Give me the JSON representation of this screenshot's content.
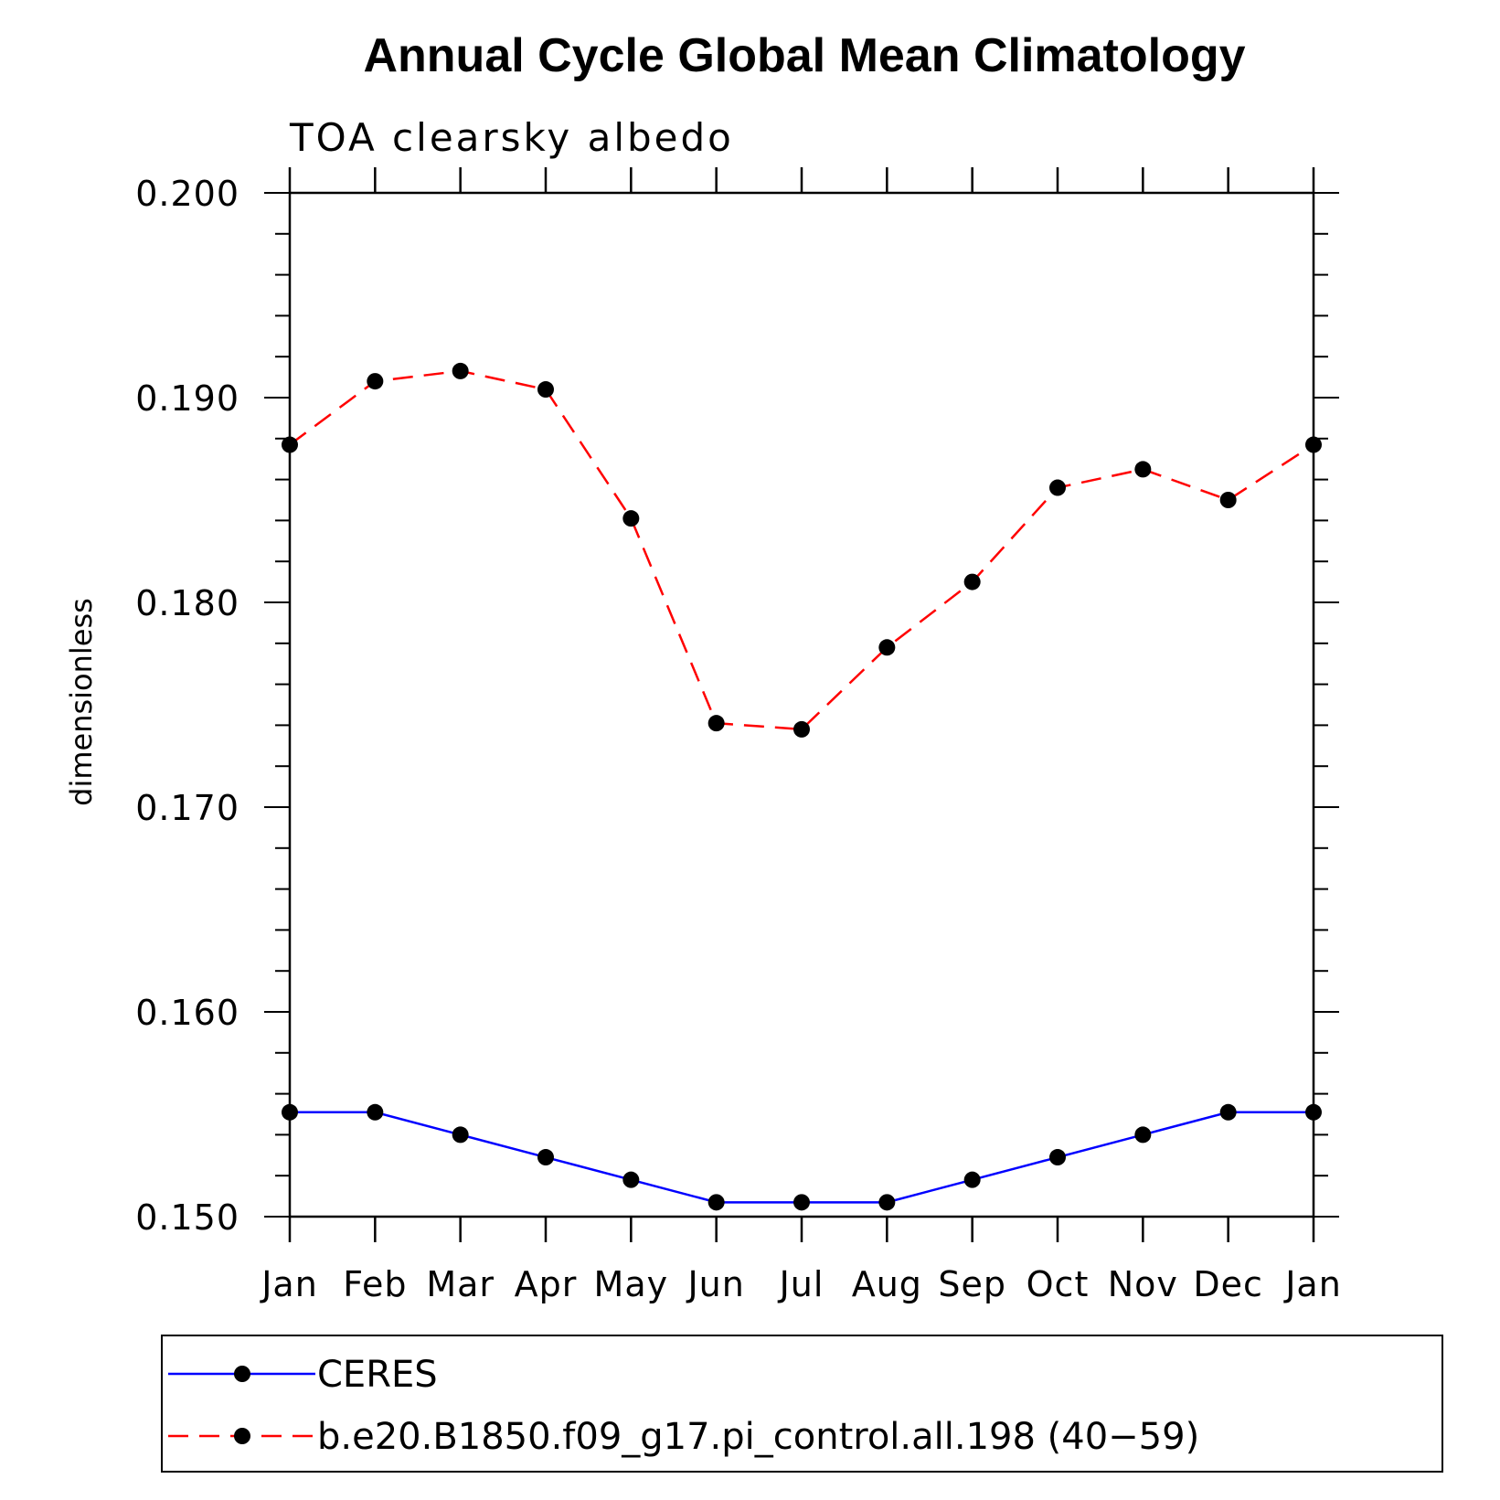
{
  "chart_data": {
    "type": "line",
    "title": "Annual Cycle Global Mean Climatology",
    "subtitle": "TOA clearsky albedo",
    "xlabel": "",
    "ylabel": "dimensionless",
    "categories": [
      "Jan",
      "Feb",
      "Mar",
      "Apr",
      "May",
      "Jun",
      "Jul",
      "Aug",
      "Sep",
      "Oct",
      "Nov",
      "Dec",
      "Jan"
    ],
    "ylim": [
      0.15,
      0.2
    ],
    "y_ticks": [
      "0.150",
      "0.160",
      "0.170",
      "0.180",
      "0.190",
      "0.200"
    ],
    "y_tick_values": [
      0.15,
      0.16,
      0.17,
      0.18,
      0.19,
      0.2
    ],
    "grid": false,
    "legend_position": "bottom",
    "series": [
      {
        "name": "CERES",
        "color": "#0000ff",
        "line_style": "solid",
        "marker": "filled-circle",
        "values": [
          0.1551,
          0.1551,
          0.154,
          0.1529,
          0.1518,
          0.1507,
          0.1507,
          0.1507,
          0.1518,
          0.1529,
          0.154,
          0.1551,
          0.1551
        ]
      },
      {
        "name": "b.e20.B1850.f09_g17.pi_control.all.198 (40−59)",
        "color": "#ff0000",
        "line_style": "dashed",
        "marker": "filled-circle",
        "values": [
          0.1877,
          0.1908,
          0.1913,
          0.1904,
          0.1841,
          0.1741,
          0.1738,
          0.1778,
          0.181,
          0.1856,
          0.1865,
          0.185,
          0.1877
        ]
      }
    ]
  }
}
